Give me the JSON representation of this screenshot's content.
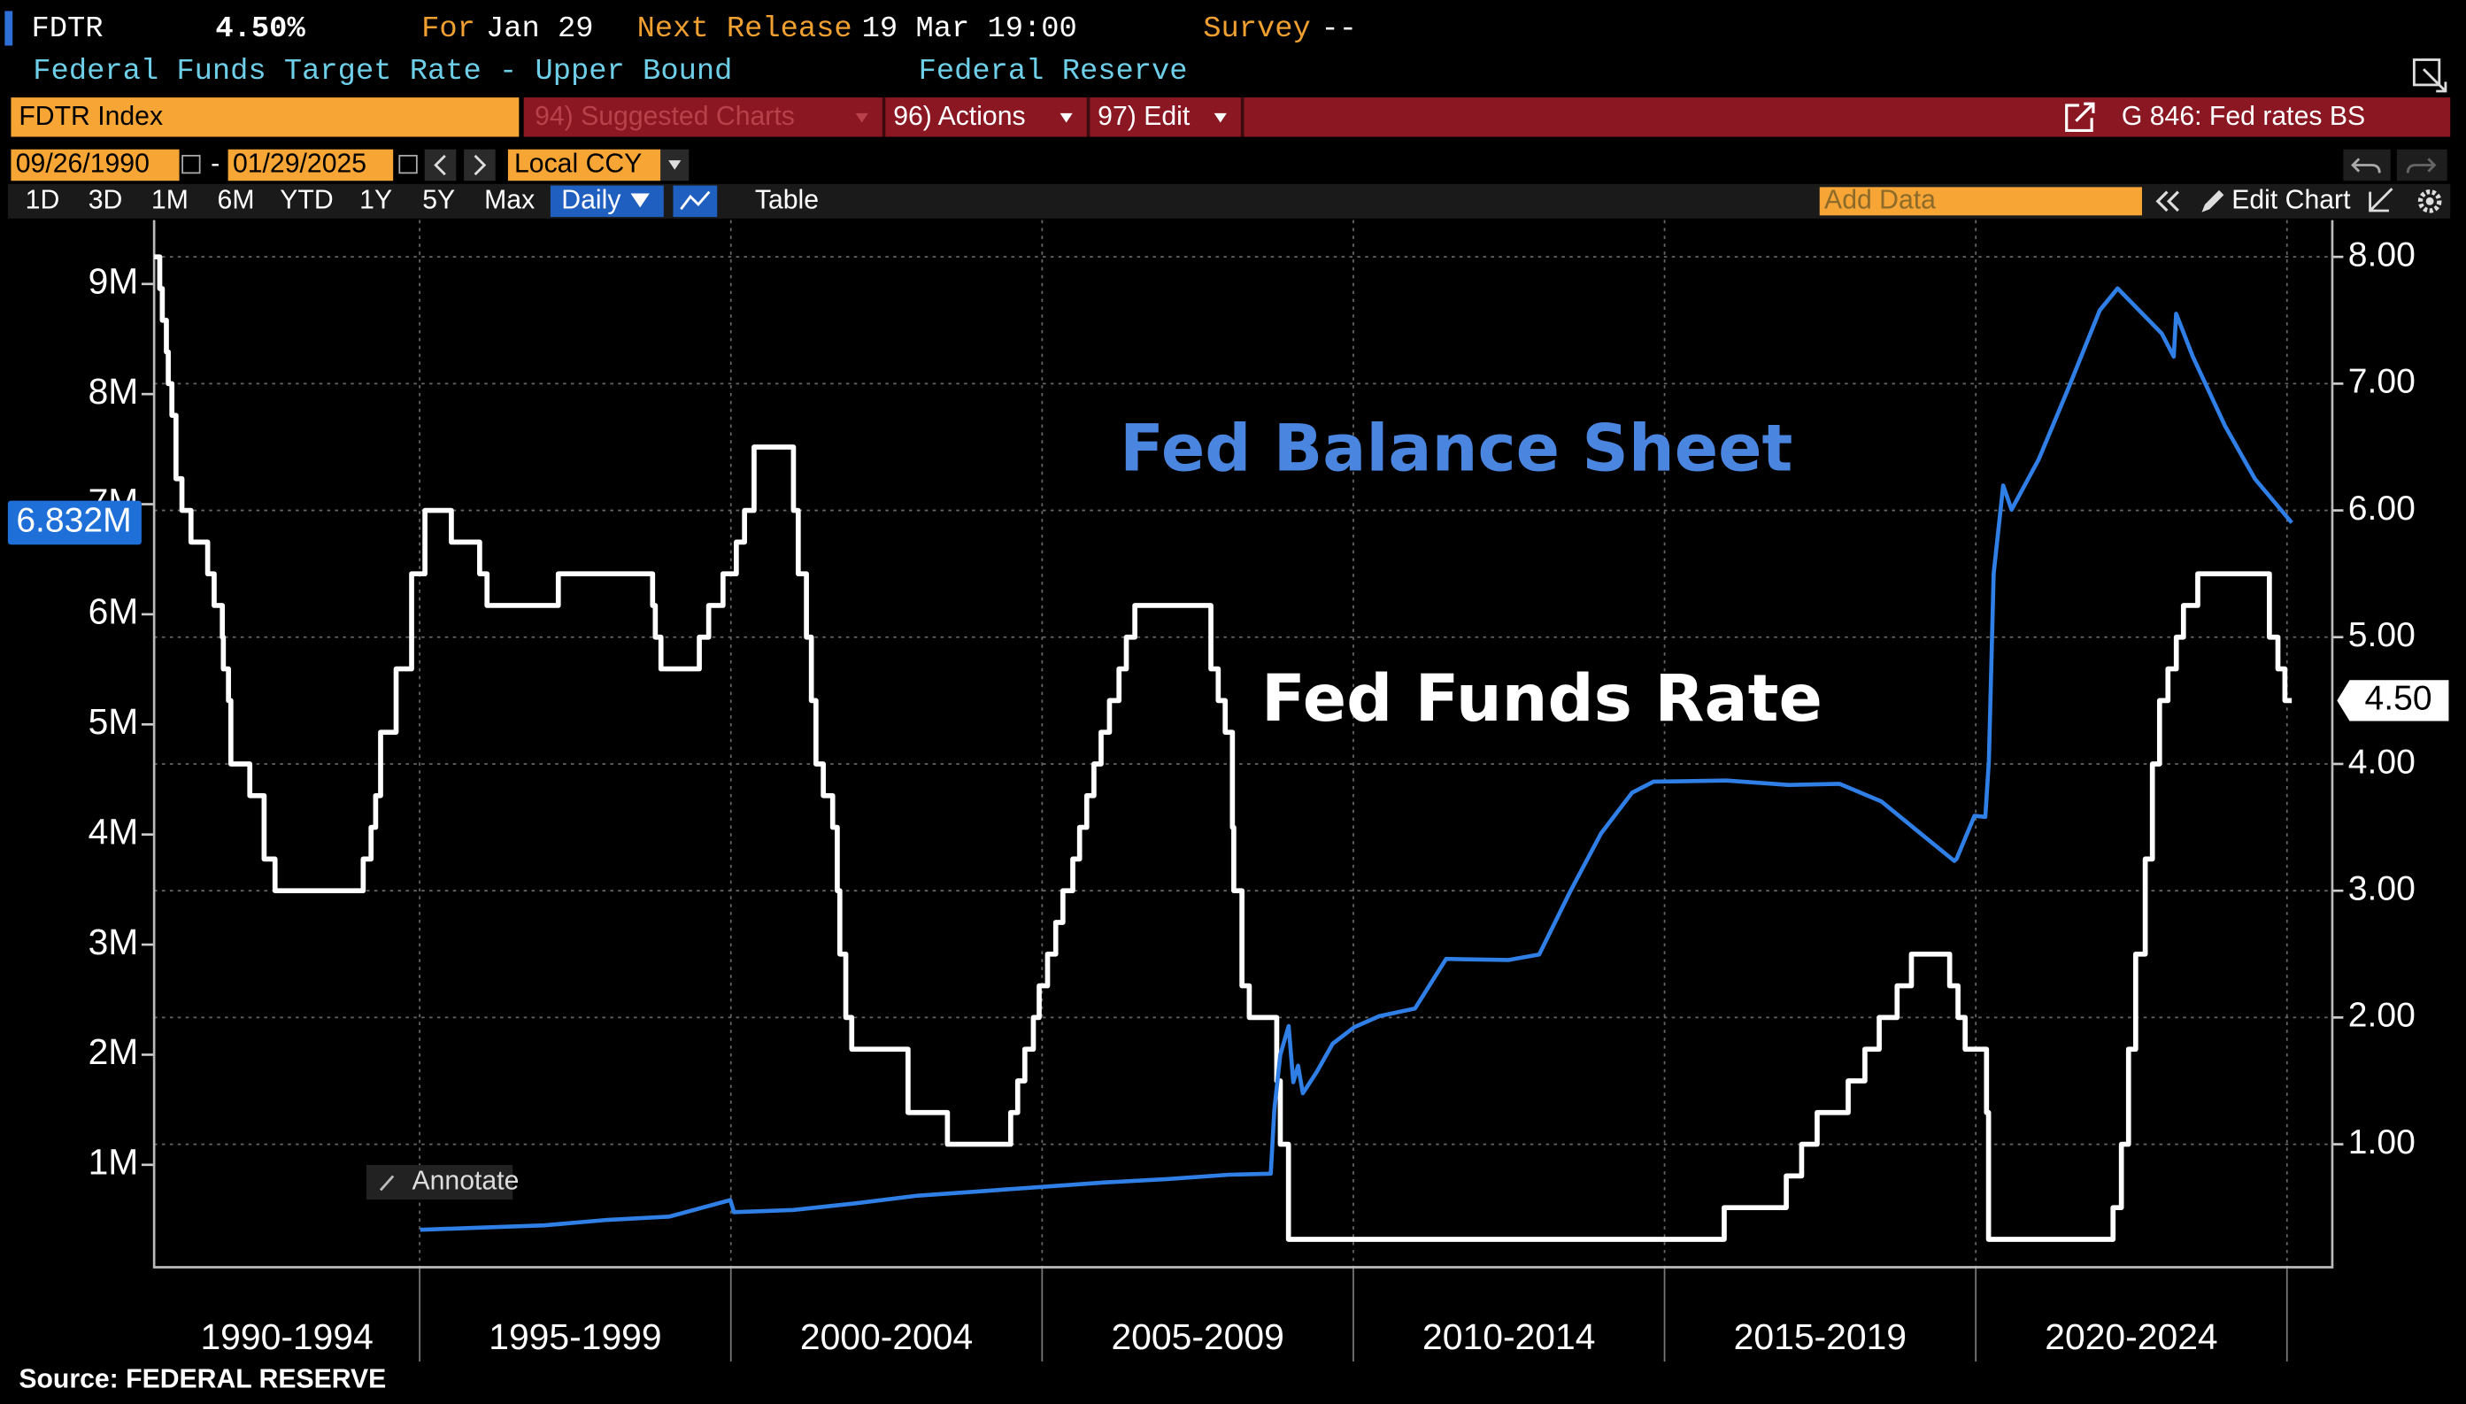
{
  "header": {
    "ticker": "FDTR",
    "value": "4.50%",
    "for_label": "For",
    "for_date": "Jan 29",
    "next_release_label": "Next Release",
    "next_release": "19 Mar 19:00",
    "survey_label": "Survey",
    "survey": "--",
    "description": "Federal Funds Target Rate - Upper Bound",
    "source": "Federal Reserve"
  },
  "command_bar": {
    "security": "FDTR Index",
    "suggested_charts": "94) Suggested Charts",
    "actions": "96) Actions",
    "edit": "97) Edit",
    "chart_name": "G 846: Fed rates BS"
  },
  "date_bar": {
    "start": "09/26/1990",
    "separator": "-",
    "end": "01/29/2025",
    "currency": "Local CCY"
  },
  "range_bar": {
    "ranges": [
      "1D",
      "3D",
      "1M",
      "6M",
      "YTD",
      "1Y",
      "5Y",
      "Max"
    ],
    "frequency": "Daily",
    "table": "Table",
    "add_data": "Add Data",
    "edit_chart": "Edit Chart"
  },
  "annotate_button": "Annotate",
  "footer": {
    "source": "Source: FEDERAL RESERVE"
  },
  "chart_data": {
    "type": "line",
    "grid": true,
    "xlim": [
      "1990-09-26",
      "2025-09-24"
    ],
    "xticks": [
      "1995",
      "2000",
      "2005",
      "2010",
      "2015",
      "2020",
      "2025"
    ],
    "x_period_labels": [
      "1990-1994",
      "1995-1999",
      "2000-2004",
      "2005-2009",
      "2010-2014",
      "2015-2019",
      "2020-2024"
    ],
    "ylim": [
      70000,
      9580000
    ],
    "yticks": [
      {
        "value": 1000000,
        "label": "1M"
      },
      {
        "value": 2000000,
        "label": "2M"
      },
      {
        "value": 3000000,
        "label": "3M"
      },
      {
        "value": 4000000,
        "label": "4M"
      },
      {
        "value": 5000000,
        "label": "5M"
      },
      {
        "value": 6000000,
        "label": "6M"
      },
      {
        "value": 7000000,
        "label": "7M"
      },
      {
        "value": 8000000,
        "label": "8M"
      },
      {
        "value": 9000000,
        "label": "9M"
      }
    ],
    "y2lim": [
      0.03,
      8.29
    ],
    "y2ticks": [
      {
        "value": 1,
        "label": "1.00"
      },
      {
        "value": 2,
        "label": "2.00"
      },
      {
        "value": 3,
        "label": "3.00"
      },
      {
        "value": 4,
        "label": "4.00"
      },
      {
        "value": 5,
        "label": "5.00"
      },
      {
        "value": 6,
        "label": "6.00"
      },
      {
        "value": 7,
        "label": "7.00"
      },
      {
        "value": 8,
        "label": "8.00"
      }
    ],
    "series": [
      {
        "name": "Fed Funds Rate",
        "color": "#ffffff",
        "axis": "y2",
        "step": "post",
        "x": [
          "1990-09-26",
          "1990-10-29",
          "1990-11-13",
          "1990-12-07",
          "1990-12-18",
          "1991-01-08",
          "1991-02-01",
          "1991-03-08",
          "1991-04-30",
          "1991-08-06",
          "1991-09-13",
          "1991-10-31",
          "1991-11-06",
          "1991-12-06",
          "1991-12-20",
          "1992-04-09",
          "1992-07-02",
          "1992-09-04",
          "1994-02-04",
          "1994-03-22",
          "1994-04-18",
          "1994-05-17",
          "1994-08-16",
          "1994-11-15",
          "1995-02-01",
          "1995-07-06",
          "1995-12-19",
          "1996-01-31",
          "1997-03-25",
          "1998-09-29",
          "1998-10-15",
          "1998-11-17",
          "1999-06-30",
          "1999-08-24",
          "1999-11-16",
          "2000-02-02",
          "2000-03-21",
          "2000-05-16",
          "2001-01-03",
          "2001-01-31",
          "2001-03-20",
          "2001-04-18",
          "2001-05-15",
          "2001-06-27",
          "2001-08-21",
          "2001-09-17",
          "2001-10-02",
          "2001-11-06",
          "2001-12-11",
          "2002-11-06",
          "2003-06-25",
          "2004-06-30",
          "2004-08-10",
          "2004-09-21",
          "2004-11-10",
          "2004-12-14",
          "2005-02-02",
          "2005-03-22",
          "2005-05-03",
          "2005-06-30",
          "2005-08-09",
          "2005-09-20",
          "2005-11-01",
          "2005-12-13",
          "2006-01-31",
          "2006-03-28",
          "2006-05-10",
          "2006-06-29",
          "2007-09-18",
          "2007-10-31",
          "2007-12-11",
          "2008-01-22",
          "2008-01-30",
          "2008-03-18",
          "2008-04-30",
          "2008-10-08",
          "2008-10-29",
          "2008-12-16",
          "2015-12-17",
          "2016-12-15",
          "2017-03-16",
          "2017-06-15",
          "2017-12-14",
          "2018-03-22",
          "2018-06-14",
          "2018-09-27",
          "2018-12-20",
          "2019-08-01",
          "2019-09-19",
          "2019-10-31",
          "2020-03-04",
          "2020-03-16",
          "2022-03-17",
          "2022-05-05",
          "2022-06-16",
          "2022-07-28",
          "2022-09-22",
          "2022-11-03",
          "2022-12-15",
          "2023-02-02",
          "2023-03-23",
          "2023-05-04",
          "2023-07-27",
          "2024-09-19",
          "2024-11-08",
          "2024-12-19",
          "2025-01-29"
        ],
        "values": [
          8.0,
          7.75,
          7.5,
          7.25,
          7.0,
          6.75,
          6.25,
          6.0,
          5.75,
          5.5,
          5.25,
          5.0,
          4.75,
          4.5,
          4.0,
          3.75,
          3.25,
          3.0,
          3.25,
          3.5,
          3.75,
          4.25,
          4.75,
          5.5,
          6.0,
          5.75,
          5.5,
          5.25,
          5.5,
          5.25,
          5.0,
          4.75,
          5.0,
          5.25,
          5.5,
          5.75,
          6.0,
          6.5,
          6.0,
          5.5,
          5.0,
          4.5,
          4.0,
          3.75,
          3.5,
          3.0,
          2.5,
          2.0,
          1.75,
          1.25,
          1.0,
          1.25,
          1.5,
          1.75,
          2.0,
          2.25,
          2.5,
          2.75,
          3.0,
          3.25,
          3.5,
          3.75,
          4.0,
          4.25,
          4.5,
          4.75,
          5.0,
          5.25,
          4.75,
          4.5,
          4.25,
          3.5,
          3.0,
          2.25,
          2.0,
          1.5,
          1.0,
          0.25,
          0.5,
          0.75,
          1.0,
          1.25,
          1.5,
          1.75,
          2.0,
          2.25,
          2.5,
          2.25,
          2.0,
          1.75,
          1.25,
          0.25,
          0.5,
          1.0,
          1.75,
          2.5,
          3.25,
          4.0,
          4.5,
          4.75,
          5.0,
          5.25,
          5.5,
          5.0,
          4.75,
          4.5,
          4.5
        ],
        "value_labels": [
          null,
          null,
          null,
          null,
          null,
          null,
          null,
          null,
          null,
          null,
          null,
          null,
          null,
          null,
          null,
          null,
          null,
          null,
          null,
          null,
          null,
          null,
          null,
          null,
          null,
          null,
          null,
          null,
          null,
          null,
          null,
          null,
          null,
          null,
          null,
          null,
          null,
          null,
          null,
          null,
          null,
          null,
          null,
          null,
          null,
          null,
          null,
          null,
          null,
          null,
          null,
          null,
          null,
          null,
          null,
          null,
          null,
          null,
          null,
          null,
          null,
          null,
          null,
          null,
          null,
          null,
          null,
          null,
          null,
          null,
          null,
          null,
          null,
          null,
          null,
          null,
          null,
          null,
          null,
          null,
          null,
          null,
          null,
          null,
          null,
          null,
          null,
          null,
          null,
          null,
          null,
          null,
          null,
          null,
          null,
          null,
          null,
          null,
          null,
          null,
          null,
          null,
          null,
          null,
          null,
          null,
          "4.50"
        ]
      },
      {
        "name": "Fed Balance Sheet",
        "color": "#2f7fe6",
        "axis": "y",
        "x": [
          "1995-01-04",
          "1996-01-03",
          "1997-01-01",
          "1998-01-07",
          "1999-01-06",
          "1999-12-29",
          "2000-01-19",
          "2001-01-03",
          "2002-01-02",
          "2003-01-01",
          "2004-01-07",
          "2005-01-05",
          "2006-01-04",
          "2007-01-03",
          "2008-01-02",
          "2008-09-03",
          "2008-09-24",
          "2008-10-29",
          "2008-12-17",
          "2009-01-14",
          "2009-02-11",
          "2009-03-11",
          "2009-06-03",
          "2009-09-02",
          "2010-01-06",
          "2010-06-02",
          "2010-12-29",
          "2011-06-29",
          "2012-06-27",
          "2012-12-26",
          "2013-06-26",
          "2013-12-25",
          "2014-06-25",
          "2014-10-29",
          "2015-12-30",
          "2016-12-28",
          "2017-10-25",
          "2018-06-27",
          "2019-01-02",
          "2019-08-28",
          "2019-09-11",
          "2019-12-25",
          "2020-02-26",
          "2020-03-18",
          "2020-04-15",
          "2020-06-10",
          "2020-07-29",
          "2021-01-06",
          "2021-06-30",
          "2021-12-29",
          "2022-04-13",
          "2022-12-28",
          "2023-03-08",
          "2023-03-22",
          "2023-06-28",
          "2024-01-03",
          "2024-06-26",
          "2025-01-29"
        ],
        "values": [
          410000,
          430000,
          450000,
          500000,
          530000,
          680000,
          570000,
          590000,
          650000,
          720000,
          760000,
          800000,
          840000,
          870000,
          910000,
          920000,
          1500000,
          2000000,
          2260000,
          1750000,
          1900000,
          1650000,
          1850000,
          2100000,
          2250000,
          2350000,
          2420000,
          2870000,
          2860000,
          2910000,
          3480000,
          4010000,
          4380000,
          4480000,
          4490000,
          4450000,
          4460000,
          4300000,
          4060000,
          3760000,
          3780000,
          4170000,
          4160000,
          4670000,
          6370000,
          7170000,
          6950000,
          7410000,
          8060000,
          8760000,
          8960000,
          8550000,
          8340000,
          8730000,
          8340000,
          7710000,
          7230000,
          6832000
        ],
        "value_labels": [
          null,
          null,
          null,
          null,
          null,
          null,
          null,
          null,
          null,
          null,
          null,
          null,
          null,
          null,
          null,
          null,
          null,
          null,
          null,
          null,
          null,
          null,
          null,
          null,
          null,
          null,
          null,
          null,
          null,
          null,
          null,
          null,
          null,
          null,
          null,
          null,
          null,
          null,
          null,
          null,
          null,
          null,
          null,
          null,
          null,
          null,
          null,
          null,
          null,
          null,
          null,
          null,
          null,
          null,
          null,
          null,
          null,
          "6.832M"
        ]
      }
    ]
  }
}
